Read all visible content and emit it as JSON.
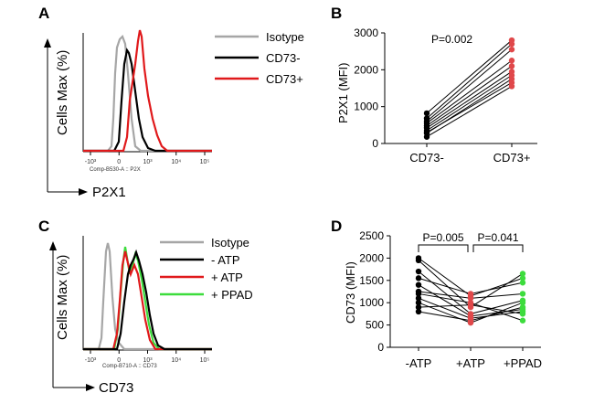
{
  "chart_data": [
    {
      "id": "A",
      "panel_label": "A",
      "type": "line",
      "ylabel": "Cells Max (%)",
      "xlabel": "P2X1",
      "xlabel_small": "Comp-B530-A :: P2X",
      "x_ticks": [
        "-10³",
        "0",
        "10³",
        "10⁴",
        "10⁵"
      ],
      "legend": [
        {
          "name": "Isotype",
          "color": "#a6a6a6"
        },
        {
          "name": "CD73-",
          "color": "#000000"
        },
        {
          "name": "CD73+",
          "color": "#e0191b"
        }
      ]
    },
    {
      "id": "B",
      "panel_label": "B",
      "type": "scatter",
      "ylabel": "P2X1 (MFI)",
      "categories": [
        "CD73-",
        "CD73+"
      ],
      "y_ticks": [
        0,
        1000,
        2000,
        3000
      ],
      "ylim": [
        0,
        3000
      ],
      "annotation": "P=0.002",
      "point_colors": [
        "#000000",
        "#e0484a"
      ],
      "pairs": [
        [
          180,
          1550
        ],
        [
          280,
          1750
        ],
        [
          350,
          1850
        ],
        [
          420,
          1950
        ],
        [
          480,
          2100
        ],
        [
          550,
          2250
        ],
        [
          600,
          2550
        ],
        [
          680,
          2700
        ],
        [
          820,
          2800
        ],
        [
          300,
          1650
        ]
      ]
    },
    {
      "id": "C",
      "panel_label": "C",
      "type": "line",
      "ylabel": "Cells Max (%)",
      "xlabel": "CD73",
      "xlabel_small": "Comp-B710-A :: CD73",
      "x_ticks": [
        "-10³",
        "0",
        "10³",
        "10⁴",
        "10⁵"
      ],
      "legend": [
        {
          "name": "Isotype",
          "color": "#a6a6a6"
        },
        {
          "name": "- ATP",
          "color": "#000000"
        },
        {
          "name": "+ ATP",
          "color": "#e0191b"
        },
        {
          "name": "+ PPAD",
          "color": "#3ddc3d"
        }
      ]
    },
    {
      "id": "D",
      "panel_label": "D",
      "type": "scatter",
      "ylabel": "CD73 (MFI)",
      "categories": [
        "-ATP",
        "+ATP",
        "+PPAD"
      ],
      "y_ticks": [
        0,
        500,
        1000,
        1500,
        2000,
        2500
      ],
      "ylim": [
        0,
        2500
      ],
      "annotations": [
        {
          "text": "P=0.005",
          "between": [
            0,
            1
          ]
        },
        {
          "text": "P=0.041",
          "between": [
            1,
            2
          ]
        }
      ],
      "point_colors": [
        "#000000",
        "#e0484a",
        "#3ddc3d"
      ],
      "triples": [
        [
          2000,
          1150,
          1550
        ],
        [
          1950,
          900,
          1650
        ],
        [
          1700,
          750,
          1050
        ],
        [
          1550,
          1200,
          1450
        ],
        [
          1400,
          700,
          850
        ],
        [
          1250,
          1100,
          1200
        ],
        [
          1100,
          650,
          800
        ],
        [
          1000,
          550,
          1000
        ],
        [
          900,
          950,
          750
        ],
        [
          800,
          600,
          900
        ],
        [
          1200,
          1000,
          600
        ]
      ]
    }
  ]
}
